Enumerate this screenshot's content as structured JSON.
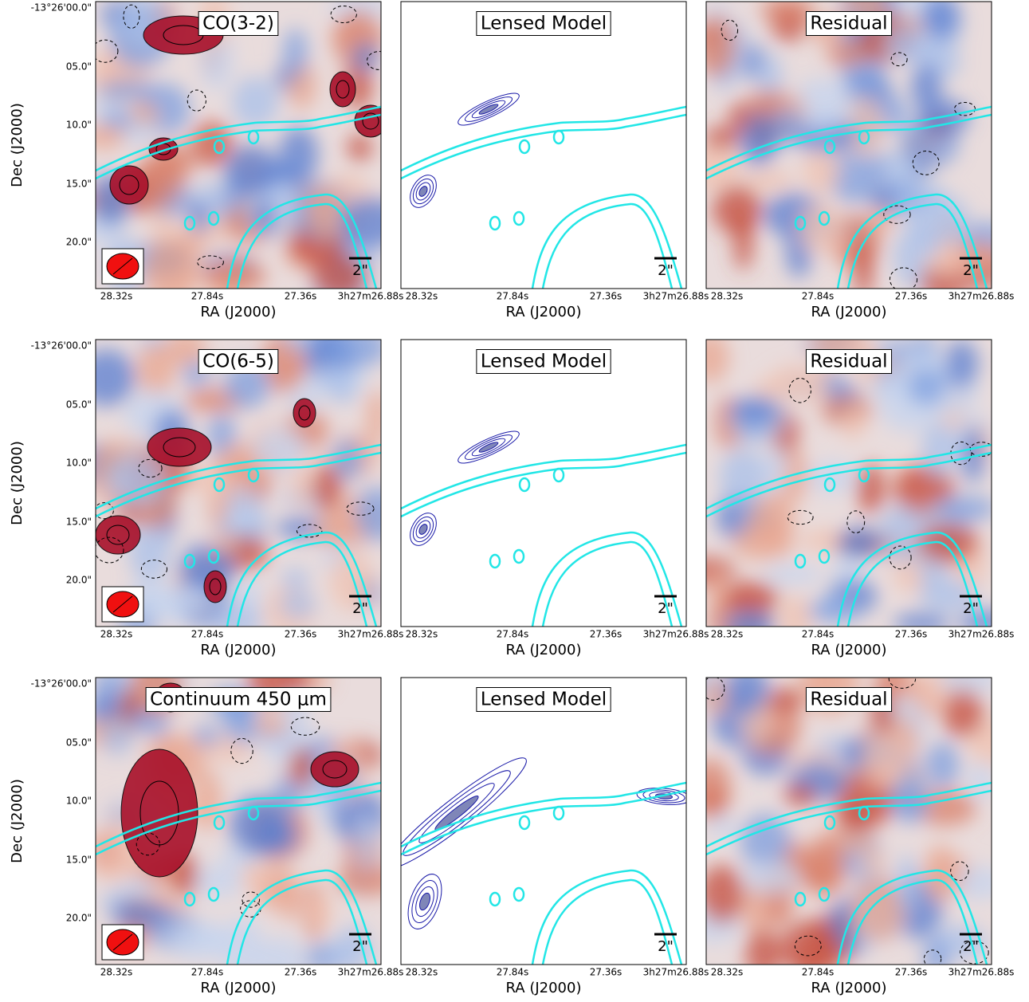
{
  "rows": [
    {
      "panels": [
        {
          "title": "CO(3-2)"
        },
        {
          "title": "Lensed Model"
        },
        {
          "title": "Residual"
        }
      ]
    },
    {
      "panels": [
        {
          "title": "CO(6-5)"
        },
        {
          "title": "Lensed Model"
        },
        {
          "title": "Residual"
        }
      ]
    },
    {
      "panels": [
        {
          "title": "Continuum 450 μm"
        },
        {
          "title": "Lensed Model"
        },
        {
          "title": "Residual"
        }
      ]
    }
  ],
  "ylabel": "Dec (J2000)",
  "xlabel": "RA (J2000)",
  "yticks": [
    "-13°26'00.0\"",
    "05.0\"",
    "10.0\"",
    "15.0\"",
    "20.0\""
  ],
  "xticks": [
    "28.32s",
    "27.84s",
    "27.36s",
    "3h27m26.88s"
  ],
  "scale_bar": "2\""
}
